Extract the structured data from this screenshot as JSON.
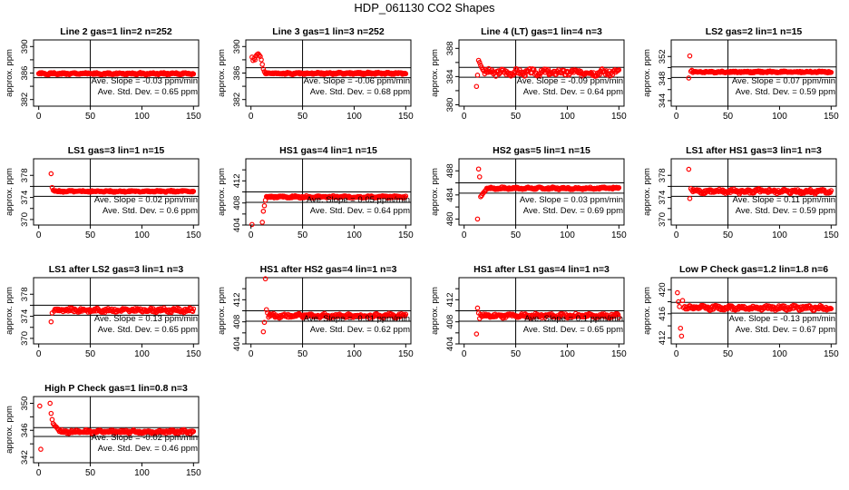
{
  "main_title": "HDP_061130  CO2 Shapes",
  "styles": {
    "point_color": "#ff0000",
    "axis_color": "#000000",
    "background": "#ffffff"
  },
  "chart_data": [
    {
      "type": "scatter",
      "title": "Line 2 gas=1 lin=2 n=252",
      "ylabel": "approx. ppm",
      "xlim": [
        -5,
        155
      ],
      "ylim": [
        381,
        391
      ],
      "xticks": [
        0,
        50,
        100,
        150
      ],
      "yticks": [
        382,
        384,
        386,
        388,
        390
      ],
      "ytick_labels": [
        "382",
        "",
        "386",
        "",
        "390"
      ],
      "hlines": [
        386.8,
        385.3
      ],
      "vline": 50,
      "slope_text": "Ave. Slope =  -0.03  ppm/min",
      "sd_text": "Ave. Std. Dev. =  0.65  ppm",
      "points": {
        "start": 0,
        "end": 150,
        "n": 252,
        "base": 385.9,
        "noise": 0.12,
        "seed": 1,
        "early": []
      }
    },
    {
      "type": "scatter",
      "title": "Line 3 gas=1 lin=3 n=252",
      "ylabel": "approx. ppm",
      "xlim": [
        -5,
        155
      ],
      "ylim": [
        381,
        391
      ],
      "xticks": [
        0,
        50,
        100,
        150
      ],
      "yticks": [
        382,
        384,
        386,
        388,
        390
      ],
      "ytick_labels": [
        "382",
        "",
        "386",
        "",
        "390"
      ],
      "hlines": [
        386.8,
        385.3
      ],
      "vline": 50,
      "slope_text": "Ave. Slope =  -0.06  ppm/min",
      "sd_text": "Ave. Std. Dev. =  0.68  ppm",
      "points": {
        "start": 14,
        "end": 150,
        "n": 252,
        "base": 385.95,
        "noise": 0.12,
        "seed": 2,
        "early": [
          [
            1,
            388.4
          ],
          [
            2,
            387.9
          ],
          [
            3,
            388.2
          ],
          [
            4,
            388.0
          ],
          [
            5,
            388.6
          ],
          [
            6,
            388.8
          ],
          [
            7,
            388.9
          ],
          [
            8,
            388.7
          ],
          [
            9,
            388.5
          ],
          [
            10,
            388.0
          ],
          [
            11,
            387.3
          ],
          [
            12,
            386.6
          ],
          [
            13,
            386.2
          ]
        ]
      }
    },
    {
      "type": "scatter",
      "title": "Line 4 (LT) gas=1 lin=4 n=3",
      "ylabel": "approx. ppm",
      "xlim": [
        -5,
        155
      ],
      "ylim": [
        379.8,
        389.2
      ],
      "xticks": [
        0,
        50,
        100,
        150
      ],
      "yticks": [
        380,
        382,
        384,
        386,
        388
      ],
      "ytick_labels": [
        "380",
        "",
        "384",
        "",
        "388"
      ],
      "hlines": [
        385.3,
        383.9
      ],
      "vline": 50,
      "slope_text": "Ave. Slope =  -0.09  ppm/min",
      "sd_text": "Ave. Std. Dev. =  0.64  ppm",
      "points": {
        "start": 20,
        "end": 150,
        "n": 170,
        "base": 384.6,
        "noise": 0.38,
        "seed": 3,
        "early": [
          [
            12,
            382.6
          ],
          [
            13,
            384.2
          ],
          [
            14,
            386.3
          ],
          [
            15,
            386.0
          ],
          [
            16,
            385.6
          ],
          [
            17,
            385.3
          ],
          [
            18,
            385.0
          ],
          [
            19,
            384.8
          ]
        ]
      }
    },
    {
      "type": "scatter",
      "title": "LS2 gas=2 lin=1 n=15",
      "ylabel": "approx. ppm",
      "xlim": [
        -5,
        155
      ],
      "ylim": [
        343,
        355
      ],
      "xticks": [
        0,
        50,
        100,
        150
      ],
      "yticks": [
        344,
        346,
        348,
        350,
        352
      ],
      "ytick_labels": [
        "344",
        "",
        "348",
        "",
        "352"
      ],
      "hlines": [
        350.1,
        348.2
      ],
      "vline": 50,
      "slope_text": "Ave. Slope =  0.07  ppm/min",
      "sd_text": "Ave. Std. Dev. =  0.59  ppm",
      "points": {
        "start": 16,
        "end": 150,
        "n": 200,
        "base": 349.2,
        "noise": 0.12,
        "seed": 4,
        "early": [
          [
            12,
            348.1
          ],
          [
            13,
            352.1
          ],
          [
            14,
            349.3
          ],
          [
            15,
            349.5
          ]
        ]
      }
    },
    {
      "type": "scatter",
      "title": "LS1 gas=3 lin=1 n=15",
      "ylabel": "approx. ppm",
      "xlim": [
        -5,
        155
      ],
      "ylim": [
        369,
        381
      ],
      "xticks": [
        0,
        50,
        100,
        150
      ],
      "yticks": [
        370,
        372,
        374,
        376,
        378
      ],
      "ytick_labels": [
        "370",
        "",
        "374",
        "",
        "378"
      ],
      "hlines": [
        376.0,
        374.2
      ],
      "vline": 50,
      "slope_text": "Ave. Slope =  0.02  ppm/min",
      "sd_text": "Ave. Std. Dev. =  0.6  ppm",
      "points": {
        "start": 15,
        "end": 150,
        "n": 200,
        "base": 375.1,
        "noise": 0.12,
        "seed": 5,
        "early": [
          [
            12,
            378.3
          ],
          [
            13,
            375.8
          ],
          [
            14,
            375.3
          ]
        ]
      }
    },
    {
      "type": "scatter",
      "title": "HS1 gas=4 lin=1 n=15",
      "ylabel": "approx. ppm",
      "xlim": [
        -5,
        155
      ],
      "ylim": [
        404,
        416
      ],
      "xticks": [
        0,
        50,
        100,
        150
      ],
      "yticks": [
        404,
        406,
        408,
        410,
        412,
        414
      ],
      "ytick_labels": [
        "404",
        "",
        "408",
        "",
        "412",
        ""
      ],
      "hlines": [
        410.0,
        408.1
      ],
      "vline": 50,
      "slope_text": "Ave. Slope =  0.05  ppm/min",
      "sd_text": "Ave. Std. Dev. =  0.64  ppm",
      "points": {
        "start": 15,
        "end": 150,
        "n": 200,
        "base": 409.1,
        "noise": 0.15,
        "seed": 6,
        "early": [
          [
            1,
            404.1
          ],
          [
            11,
            404.5
          ],
          [
            12,
            406.5
          ],
          [
            13,
            407.5
          ],
          [
            14,
            408.5
          ]
        ]
      }
    },
    {
      "type": "scatter",
      "title": "HS2 gas=5 lin=1 n=15",
      "ylabel": "approx. ppm",
      "xlim": [
        -5,
        155
      ],
      "ylim": [
        479,
        490
      ],
      "xticks": [
        0,
        50,
        100,
        150
      ],
      "yticks": [
        480,
        482,
        484,
        486,
        488
      ],
      "ytick_labels": [
        "480",
        "",
        "484",
        "",
        "488"
      ],
      "hlines": [
        486.0,
        484.3
      ],
      "vline": 50,
      "slope_text": "Ave. Slope =  0.03  ppm/min",
      "sd_text": "Ave. Std. Dev. =  0.69  ppm",
      "points": {
        "start": 22,
        "end": 150,
        "n": 190,
        "base": 485.1,
        "noise": 0.15,
        "seed": 7,
        "early": [
          [
            13,
            480.0
          ],
          [
            14,
            488.3
          ],
          [
            15,
            487.0
          ],
          [
            16,
            483.7
          ],
          [
            17,
            483.9
          ],
          [
            18,
            484.2
          ],
          [
            19,
            484.4
          ],
          [
            20,
            484.6
          ],
          [
            21,
            484.8
          ]
        ]
      }
    },
    {
      "type": "scatter",
      "title": "LS1 after HS1 gas=3 lin=1 n=3",
      "ylabel": "approx. ppm",
      "xlim": [
        -5,
        155
      ],
      "ylim": [
        369,
        381
      ],
      "xticks": [
        0,
        50,
        100,
        150
      ],
      "yticks": [
        370,
        372,
        374,
        376,
        378
      ],
      "ytick_labels": [
        "370",
        "",
        "374",
        "",
        "378"
      ],
      "hlines": [
        376.0,
        374.2
      ],
      "vline": 50,
      "slope_text": "Ave. Slope =  0.11  ppm/min",
      "sd_text": "Ave. Std. Dev. =  0.59  ppm",
      "points": {
        "start": 16,
        "end": 150,
        "n": 200,
        "base": 375.1,
        "noise": 0.33,
        "seed": 8,
        "early": [
          [
            12,
            379.1
          ],
          [
            13,
            373.8
          ],
          [
            14,
            375.6
          ],
          [
            15,
            375.3
          ]
        ]
      }
    },
    {
      "type": "scatter",
      "title": "LS1 after LS2 gas=3 lin=1 n=3",
      "ylabel": "approx. ppm",
      "xlim": [
        -5,
        155
      ],
      "ylim": [
        369,
        381
      ],
      "xticks": [
        0,
        50,
        100,
        150
      ],
      "yticks": [
        370,
        372,
        374,
        376,
        378
      ],
      "ytick_labels": [
        "370",
        "",
        "374",
        "",
        "378"
      ],
      "hlines": [
        376.0,
        374.2
      ],
      "vline": 50,
      "slope_text": "Ave. Slope =  0.13  ppm/min",
      "sd_text": "Ave. Std. Dev. =  0.65  ppm",
      "points": {
        "start": 15,
        "end": 150,
        "n": 190,
        "base": 375.1,
        "noise": 0.3,
        "seed": 9,
        "early": [
          [
            12,
            373.0
          ],
          [
            13,
            374.6
          ]
        ]
      }
    },
    {
      "type": "scatter",
      "title": "HS1 after HS2 gas=4 lin=1 n=3",
      "ylabel": "approx. ppm",
      "xlim": [
        -5,
        155
      ],
      "ylim": [
        404,
        416
      ],
      "xticks": [
        0,
        50,
        100,
        150
      ],
      "yticks": [
        404,
        406,
        408,
        410,
        412,
        414
      ],
      "ytick_labels": [
        "404",
        "",
        "408",
        "",
        "412",
        ""
      ],
      "hlines": [
        410.0,
        408.1
      ],
      "vline": 50,
      "slope_text": "Ave. Slope =  -0.01  ppm/min",
      "sd_text": "Ave. Std. Dev. =  0.62  ppm",
      "points": {
        "start": 17,
        "end": 150,
        "n": 190,
        "base": 409.1,
        "noise": 0.3,
        "seed": 10,
        "early": [
          [
            12,
            406.2
          ],
          [
            13,
            407.9
          ],
          [
            14,
            415.8
          ],
          [
            15,
            410.2
          ],
          [
            16,
            409.6
          ]
        ]
      }
    },
    {
      "type": "scatter",
      "title": "HS1 after LS1 gas=4 lin=1 n=3",
      "ylabel": "approx. ppm",
      "xlim": [
        -5,
        155
      ],
      "ylim": [
        404,
        416
      ],
      "xticks": [
        0,
        50,
        100,
        150
      ],
      "yticks": [
        404,
        406,
        408,
        410,
        412,
        414
      ],
      "ytick_labels": [
        "404",
        "",
        "408",
        "",
        "412",
        ""
      ],
      "hlines": [
        410.0,
        408.1
      ],
      "vline": 50,
      "slope_text": "Ave. Slope =  0.1  ppm/min",
      "sd_text": "Ave. Std. Dev. =  0.65  ppm",
      "points": {
        "start": 16,
        "end": 150,
        "n": 190,
        "base": 409.1,
        "noise": 0.3,
        "seed": 11,
        "early": [
          [
            12,
            405.8
          ],
          [
            13,
            410.5
          ],
          [
            14,
            409.6
          ],
          [
            15,
            408.6
          ]
        ]
      }
    },
    {
      "type": "scatter",
      "title": "Low P Check gas=1.2 lin=1.8 n=6",
      "ylabel": "approx. ppm",
      "xlim": [
        -5,
        155
      ],
      "ylim": [
        411,
        422
      ],
      "xticks": [
        0,
        50,
        100,
        150
      ],
      "yticks": [
        412,
        414,
        416,
        418,
        420
      ],
      "ytick_labels": [
        "412",
        "",
        "416",
        "",
        "420"
      ],
      "hlines": [
        417.9,
        416.1
      ],
      "vline": 50,
      "slope_text": "Ave. Slope =  -0.13  ppm/min",
      "sd_text": "Ave. Std. Dev. =  0.67  ppm",
      "points": {
        "start": 10,
        "end": 150,
        "n": 200,
        "base": 417.0,
        "noise": 0.3,
        "seed": 12,
        "early": [
          [
            1,
            419.5
          ],
          [
            2,
            418.0
          ],
          [
            3,
            417.2
          ],
          [
            4,
            413.6
          ],
          [
            5,
            412.3
          ],
          [
            6,
            418.2
          ],
          [
            7,
            417.0
          ],
          [
            8,
            417.2
          ],
          [
            9,
            416.8
          ]
        ]
      }
    },
    {
      "type": "scatter",
      "title": "High P Check gas=1 lin=0.8 n=3",
      "ylabel": "approx. ppm",
      "xlim": [
        -5,
        155
      ],
      "ylim": [
        341.2,
        351
      ],
      "xticks": [
        0,
        50,
        100,
        150
      ],
      "yticks": [
        342,
        344,
        346,
        348,
        350
      ],
      "ytick_labels": [
        "342",
        "",
        "346",
        "",
        "350"
      ],
      "hlines": [
        346.4,
        345.1
      ],
      "vline": 50,
      "slope_text": "Ave. Slope =  -0.02  ppm/min",
      "sd_text": "Ave. Std. Dev. =  0.46  ppm",
      "points": {
        "start": 20,
        "end": 150,
        "n": 200,
        "base": 345.8,
        "noise": 0.2,
        "seed": 13,
        "early": [
          [
            1,
            349.6
          ],
          [
            2,
            343.2
          ],
          [
            11,
            350.0
          ],
          [
            12,
            348.5
          ],
          [
            13,
            347.6
          ],
          [
            14,
            347.0
          ],
          [
            15,
            346.8
          ],
          [
            16,
            346.6
          ],
          [
            17,
            346.5
          ],
          [
            18,
            346.3
          ],
          [
            19,
            346.1
          ]
        ]
      }
    }
  ]
}
